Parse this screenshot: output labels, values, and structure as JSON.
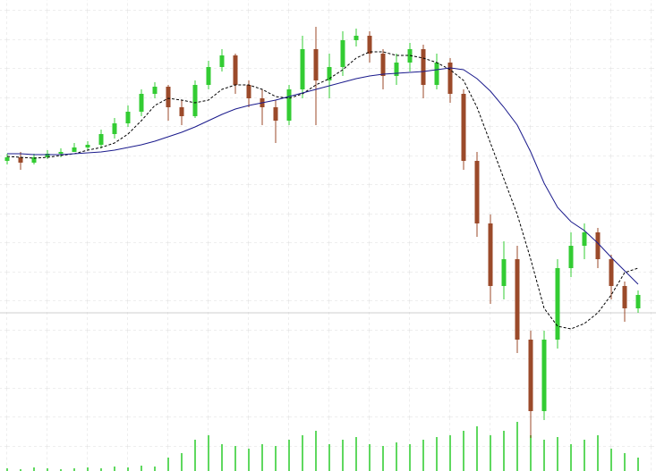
{
  "chart_data": {
    "type": "candlestick",
    "ylim": [
      0,
      527
    ],
    "vlim": [
      0,
      60
    ],
    "up_color": "#33cc33",
    "down_color": "#9b4a2a",
    "volume_color": "#5fd85f",
    "open": [
      347,
      351,
      345,
      351,
      355,
      357,
      362,
      365,
      377,
      389,
      402,
      422,
      430,
      407,
      397,
      432,
      452,
      465,
      432,
      417,
      407,
      392,
      427,
      472,
      437,
      452,
      482,
      487,
      467,
      442,
      457,
      472,
      432,
      457,
      422,
      347,
      277,
      207,
      237,
      147,
      67,
      147,
      227,
      252,
      267,
      237,
      207,
      182
    ],
    "high": [
      355,
      357,
      355,
      359,
      361,
      367,
      369,
      382,
      395,
      409,
      427,
      435,
      432,
      415,
      437,
      459,
      472,
      467,
      437,
      427,
      415,
      432,
      487,
      497,
      467,
      492,
      495,
      492,
      472,
      467,
      479,
      477,
      467,
      462,
      427,
      357,
      287,
      257,
      252,
      157,
      157,
      237,
      267,
      277,
      272,
      242,
      212,
      202
    ],
    "low": [
      343,
      337,
      343,
      349,
      351,
      357,
      359,
      361,
      372,
      385,
      397,
      417,
      392,
      387,
      395,
      427,
      447,
      422,
      407,
      387,
      367,
      387,
      417,
      387,
      417,
      442,
      475,
      457,
      427,
      432,
      447,
      417,
      427,
      412,
      337,
      262,
      187,
      192,
      132,
      37,
      57,
      137,
      217,
      237,
      227,
      192,
      167,
      177
    ],
    "close": [
      351,
      345,
      351,
      355,
      357,
      362,
      365,
      377,
      389,
      402,
      422,
      430,
      407,
      397,
      432,
      452,
      465,
      432,
      417,
      407,
      392,
      427,
      472,
      437,
      452,
      482,
      487,
      467,
      442,
      457,
      472,
      432,
      457,
      422,
      347,
      277,
      207,
      237,
      147,
      67,
      147,
      227,
      252,
      267,
      237,
      207,
      182,
      197
    ],
    "volume": [
      3,
      2,
      4,
      3,
      2,
      3,
      4,
      3,
      5,
      4,
      6,
      5,
      15,
      20,
      35,
      40,
      30,
      28,
      25,
      30,
      28,
      35,
      40,
      45,
      30,
      35,
      38,
      30,
      28,
      32,
      30,
      35,
      38,
      40,
      45,
      50,
      40,
      45,
      55,
      40,
      35,
      38,
      30,
      35,
      40,
      25,
      20,
      15
    ],
    "lines": [
      {
        "color": "#000000",
        "dashed": true,
        "values": [
          352,
          351,
          350,
          351,
          353,
          355,
          359,
          362,
          367,
          377,
          392,
          409,
          417,
          415,
          412,
          415,
          427,
          432,
          432,
          427,
          419,
          417,
          422,
          432,
          439,
          449,
          462,
          469,
          469,
          465,
          465,
          462,
          457,
          449,
          437,
          407,
          367,
          327,
          287,
          237,
          182,
          162,
          159,
          165,
          177,
          197,
          222,
          227
        ]
      },
      {
        "color": "#1a1a8c",
        "dashed": false,
        "values": [
          355,
          355,
          354,
          354,
          354,
          355,
          356,
          357,
          359,
          362,
          365,
          369,
          374,
          379,
          385,
          392,
          399,
          405,
          409,
          412,
          415,
          419,
          423,
          427,
          431,
          435,
          439,
          442,
          444,
          445,
          446,
          447,
          449,
          451,
          449,
          439,
          425,
          407,
          387,
          357,
          322,
          295,
          279,
          269,
          255,
          239,
          224,
          209
        ]
      }
    ],
    "reference_line": 177
  }
}
